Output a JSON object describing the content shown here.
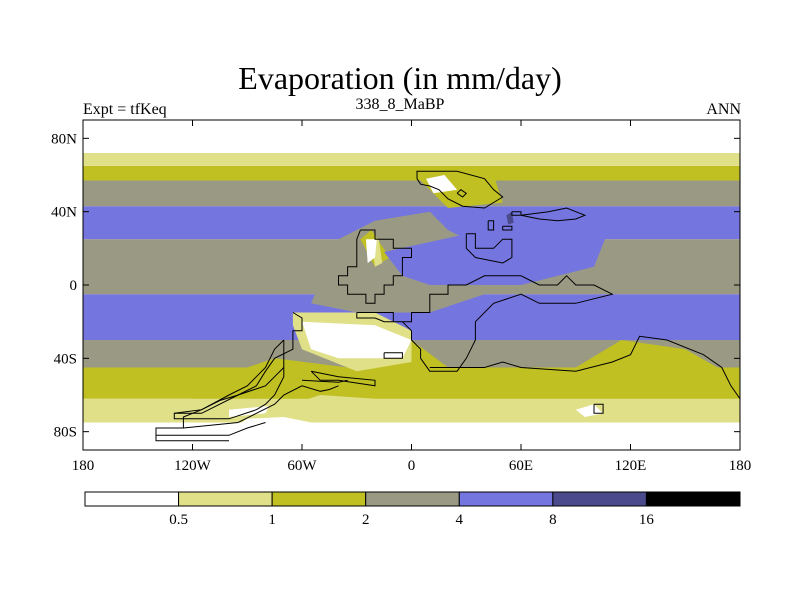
{
  "title": "Evaporation (in mm/day)",
  "left_label": "Expt = tfKeq",
  "center_label": "338_8_MaBP",
  "right_label": "ANN",
  "colors": {
    "c0": "#ffffff",
    "c1": "#e0e089",
    "c2": "#c0c023",
    "c3": "#9a9a84",
    "c4": "#7575e0",
    "c5": "#4a4a8c",
    "c6": "#000000"
  },
  "chart_data": {
    "type": "heatmap",
    "title": "Evaporation (in mm/day)",
    "subtitle": "338_8_MaBP",
    "annotations": [
      "Expt = tfKeq",
      "ANN"
    ],
    "xlim": [
      -180,
      180
    ],
    "ylim": [
      -90,
      90
    ],
    "x_ticks": [
      {
        "value": -180,
        "label": "180"
      },
      {
        "value": -120,
        "label": "120W"
      },
      {
        "value": -60,
        "label": "60W"
      },
      {
        "value": 0,
        "label": "0"
      },
      {
        "value": 60,
        "label": "60E"
      },
      {
        "value": 120,
        "label": "120E"
      },
      {
        "value": 180,
        "label": "180"
      }
    ],
    "y_ticks": [
      {
        "value": 80,
        "label": "80N"
      },
      {
        "value": 40,
        "label": "40N"
      },
      {
        "value": 0,
        "label": "0"
      },
      {
        "value": -40,
        "label": "40S"
      },
      {
        "value": -80,
        "label": "80S"
      }
    ],
    "colorbar": {
      "levels": [
        0.5,
        1,
        2,
        4,
        8,
        16
      ],
      "labels": [
        "0.5",
        "1",
        "2",
        "4",
        "8",
        "16"
      ],
      "colors": [
        "#ffffff",
        "#e0e089",
        "#c0c023",
        "#9a9a84",
        "#7575e0",
        "#4a4a8c",
        "#000000"
      ]
    },
    "zonal_bands": [
      {
        "lat": [
          -90,
          -75
        ],
        "level": 0
      },
      {
        "lat": [
          -75,
          -62
        ],
        "level": 1
      },
      {
        "lat": [
          -62,
          -45
        ],
        "level": 2
      },
      {
        "lat": [
          -45,
          -30
        ],
        "level": 3
      },
      {
        "lat": [
          -30,
          -5
        ],
        "level": 4
      },
      {
        "lat": [
          -5,
          25
        ],
        "level": 3
      },
      {
        "lat": [
          25,
          43
        ],
        "level": 4
      },
      {
        "lat": [
          43,
          57
        ],
        "level": 3
      },
      {
        "lat": [
          57,
          65
        ],
        "level": 2
      },
      {
        "lat": [
          65,
          72
        ],
        "level": 1
      },
      {
        "lat": [
          72,
          90
        ],
        "level": 0
      }
    ],
    "regions": [
      {
        "level": 2,
        "polygon": [
          [
            -120,
            -55
          ],
          [
            -75,
            -40
          ],
          [
            -35,
            -45
          ],
          [
            0,
            -30
          ],
          [
            20,
            -45
          ],
          [
            60,
            -50
          ],
          [
            90,
            -45
          ],
          [
            115,
            -30
          ],
          [
            150,
            -35
          ],
          [
            180,
            -52
          ],
          [
            180,
            -62
          ],
          [
            -120,
            -62
          ]
        ]
      },
      {
        "level": 3,
        "polygon": [
          [
            -55,
            -10
          ],
          [
            -40,
            25
          ],
          [
            -20,
            35
          ],
          [
            10,
            40
          ],
          [
            20,
            30
          ],
          [
            40,
            20
          ],
          [
            55,
            10
          ],
          [
            40,
            -5
          ],
          [
            10,
            -15
          ],
          [
            -30,
            -15
          ]
        ]
      },
      {
        "level": 2,
        "polygon": [
          [
            -28,
            25
          ],
          [
            -22,
            30
          ],
          [
            -12,
            15
          ],
          [
            -20,
            10
          ]
        ]
      },
      {
        "level": 2,
        "polygon": [
          [
            2,
            60
          ],
          [
            10,
            62
          ],
          [
            45,
            60
          ],
          [
            50,
            45
          ],
          [
            20,
            42
          ]
        ]
      },
      {
        "level": 0,
        "polygon": [
          [
            8,
            58
          ],
          [
            18,
            60
          ],
          [
            25,
            52
          ],
          [
            12,
            50
          ]
        ]
      },
      {
        "level": 1,
        "polygon": [
          [
            -22,
            25
          ],
          [
            -18,
            25
          ],
          [
            -16,
            12
          ],
          [
            -20,
            10
          ]
        ]
      },
      {
        "level": 0,
        "polygon": [
          [
            -25,
            25
          ],
          [
            -19,
            25
          ],
          [
            -20,
            15
          ],
          [
            -24,
            12
          ]
        ]
      },
      {
        "level": 1,
        "polygon": [
          [
            -65,
            -15
          ],
          [
            -20,
            -15
          ],
          [
            0,
            -25
          ],
          [
            0,
            -42
          ],
          [
            -30,
            -47
          ],
          [
            -60,
            -35
          ],
          [
            -65,
            -22
          ]
        ]
      },
      {
        "level": 0,
        "polygon": [
          [
            -60,
            -20
          ],
          [
            -20,
            -22
          ],
          [
            0,
            -30
          ],
          [
            -5,
            -40
          ],
          [
            -40,
            -40
          ],
          [
            -55,
            -35
          ]
        ]
      },
      {
        "level": 1,
        "polygon": [
          [
            30,
            20
          ],
          [
            50,
            25
          ],
          [
            55,
            18
          ],
          [
            35,
            15
          ]
        ]
      },
      {
        "level": 0,
        "polygon": [
          [
            33,
            22
          ],
          [
            45,
            24
          ],
          [
            46,
            18
          ],
          [
            38,
            17
          ]
        ]
      },
      {
        "level": 4,
        "polygon": [
          [
            -15,
            18
          ],
          [
            40,
            30
          ],
          [
            70,
            38
          ],
          [
            90,
            40
          ],
          [
            110,
            35
          ],
          [
            100,
            10
          ],
          [
            60,
            0
          ],
          [
            10,
            0
          ],
          [
            -5,
            5
          ]
        ]
      },
      {
        "level": 5,
        "polygon": [
          [
            52,
            38
          ],
          [
            55,
            40
          ],
          [
            56,
            34
          ],
          [
            53,
            33
          ]
        ]
      },
      {
        "level": 3,
        "polygon": [
          [
            -30,
            -2
          ],
          [
            -10,
            5
          ],
          [
            0,
            -12
          ],
          [
            -20,
            -15
          ]
        ]
      },
      {
        "level": 1,
        "polygon": [
          [
            -75,
            -68
          ],
          [
            -50,
            -60
          ],
          [
            -20,
            -62
          ],
          [
            -20,
            -68
          ],
          [
            -60,
            -72
          ]
        ]
      },
      {
        "level": 0,
        "polygon": [
          [
            -100,
            -80
          ],
          [
            -90,
            -73
          ],
          [
            -70,
            -72
          ],
          [
            -40,
            -78
          ],
          [
            -40,
            -85
          ],
          [
            -100,
            -85
          ]
        ]
      },
      {
        "level": 0,
        "polygon": [
          [
            -100,
            -72
          ],
          [
            -80,
            -70
          ],
          [
            -78,
            -66
          ],
          [
            -100,
            -68
          ]
        ]
      },
      {
        "level": 0,
        "polygon": [
          [
            90,
            -68
          ],
          [
            100,
            -65
          ],
          [
            105,
            -70
          ],
          [
            95,
            -72
          ]
        ]
      }
    ],
    "coastlines": [
      [
        [
          -28,
          30
        ],
        [
          -20,
          30
        ],
        [
          -20,
          25
        ],
        [
          -10,
          25
        ],
        [
          -10,
          20
        ],
        [
          0,
          20
        ],
        [
          0,
          15
        ],
        [
          -5,
          15
        ],
        [
          -5,
          5
        ],
        [
          -10,
          5
        ],
        [
          -10,
          0
        ],
        [
          -15,
          0
        ],
        [
          -15,
          -5
        ],
        [
          -20,
          -5
        ],
        [
          -20,
          -10
        ],
        [
          -25,
          -10
        ],
        [
          -25,
          -5
        ],
        [
          -35,
          -5
        ],
        [
          -35,
          0
        ],
        [
          -40,
          0
        ],
        [
          -40,
          5
        ],
        [
          -35,
          5
        ],
        [
          -35,
          10
        ],
        [
          -30,
          10
        ],
        [
          -30,
          25
        ],
        [
          -28,
          30
        ]
      ],
      [
        [
          -30,
          -15
        ],
        [
          -10,
          -15
        ],
        [
          -10,
          -20
        ],
        [
          0,
          -20
        ],
        [
          0,
          -15
        ],
        [
          10,
          -15
        ],
        [
          10,
          -5
        ],
        [
          20,
          -5
        ],
        [
          20,
          0
        ],
        [
          30,
          0
        ],
        [
          40,
          5
        ],
        [
          60,
          5
        ],
        [
          70,
          0
        ],
        [
          80,
          0
        ],
        [
          85,
          5
        ],
        [
          90,
          0
        ],
        [
          100,
          0
        ],
        [
          110,
          -5
        ],
        [
          90,
          -10
        ],
        [
          70,
          -10
        ],
        [
          60,
          -5
        ],
        [
          45,
          -10
        ],
        [
          35,
          -20
        ],
        [
          35,
          -30
        ],
        [
          30,
          -40
        ],
        [
          25,
          -47
        ],
        [
          10,
          -47
        ],
        [
          5,
          -40
        ],
        [
          5,
          -35
        ],
        [
          0,
          -30
        ],
        [
          0,
          -25
        ],
        [
          -5,
          -20
        ],
        [
          -15,
          -20
        ],
        [
          -20,
          -18
        ],
        [
          -30,
          -18
        ],
        [
          -30,
          -15
        ]
      ],
      [
        [
          -65,
          -15
        ],
        [
          -60,
          -18
        ],
        [
          -60,
          -25
        ],
        [
          -65,
          -25
        ],
        [
          -65,
          -35
        ],
        [
          -75,
          -40
        ],
        [
          -80,
          -47
        ],
        [
          -85,
          -55
        ],
        [
          -95,
          -60
        ],
        [
          -115,
          -70
        ],
        [
          -130,
          -70
        ],
        [
          -130,
          -73
        ],
        [
          -100,
          -73
        ],
        [
          -85,
          -68
        ],
        [
          -80,
          -65
        ],
        [
          -75,
          -60
        ],
        [
          -70,
          -50
        ],
        [
          -70,
          -40
        ],
        [
          -70,
          -30
        ]
      ],
      [
        [
          -55,
          -47
        ],
        [
          -50,
          -52
        ],
        [
          -40,
          -52
        ],
        [
          -20,
          -55
        ],
        [
          -20,
          -52
        ],
        [
          -40,
          -50
        ],
        [
          -55,
          -47
        ]
      ],
      [
        [
          3,
          58
        ],
        [
          3,
          62
        ],
        [
          15,
          62
        ],
        [
          25,
          62
        ],
        [
          40,
          58
        ],
        [
          45,
          52
        ],
        [
          50,
          48
        ],
        [
          45,
          45
        ],
        [
          40,
          42
        ],
        [
          28,
          43
        ],
        [
          20,
          47
        ],
        [
          15,
          52
        ],
        [
          10,
          54
        ],
        [
          5,
          55
        ],
        [
          3,
          58
        ]
      ],
      [
        [
          25,
          50
        ],
        [
          28,
          48
        ],
        [
          30,
          50
        ],
        [
          27,
          52
        ],
        [
          25,
          50
        ]
      ],
      [
        [
          42,
          35
        ],
        [
          45,
          35
        ],
        [
          45,
          30
        ],
        [
          42,
          30
        ],
        [
          42,
          35
        ]
      ],
      [
        [
          50,
          32
        ],
        [
          55,
          32
        ],
        [
          55,
          30
        ],
        [
          50,
          30
        ],
        [
          50,
          32
        ]
      ],
      [
        [
          30,
          28
        ],
        [
          35,
          28
        ],
        [
          35,
          20
        ],
        [
          45,
          20
        ],
        [
          50,
          25
        ],
        [
          55,
          25
        ],
        [
          55,
          15
        ],
        [
          50,
          12
        ],
        [
          35,
          15
        ],
        [
          30,
          20
        ],
        [
          30,
          28
        ]
      ],
      [
        [
          55,
          40
        ],
        [
          60,
          40
        ],
        [
          60,
          38
        ],
        [
          55,
          38
        ],
        [
          55,
          40
        ]
      ],
      [
        [
          60,
          38
        ],
        [
          75,
          40
        ],
        [
          85,
          42
        ],
        [
          90,
          40
        ],
        [
          95,
          38
        ],
        [
          90,
          36
        ],
        [
          80,
          35
        ],
        [
          70,
          36
        ],
        [
          60,
          38
        ]
      ],
      [
        [
          -70,
          -30
        ],
        [
          -75,
          -35
        ],
        [
          -80,
          -45
        ],
        [
          -85,
          -50
        ],
        [
          -90,
          -55
        ],
        [
          -100,
          -60
        ],
        [
          -115,
          -68
        ],
        [
          -125,
          -72
        ],
        [
          -125,
          -78
        ],
        [
          -140,
          -78
        ],
        [
          -140,
          -82
        ],
        [
          -100,
          -82
        ],
        [
          -90,
          -78
        ],
        [
          -80,
          -75
        ]
      ],
      [
        [
          -125,
          -78
        ],
        [
          -95,
          -75
        ],
        [
          -85,
          -70
        ],
        [
          -75,
          -65
        ],
        [
          -70,
          -60
        ],
        [
          -60,
          -55
        ],
        [
          -50,
          -58
        ],
        [
          -45,
          -57
        ],
        [
          -40,
          -55
        ]
      ],
      [
        [
          -100,
          -85
        ],
        [
          -140,
          -85
        ],
        [
          -140,
          -82
        ]
      ],
      [
        [
          -130,
          -70
        ],
        [
          -115,
          -68
        ],
        [
          -105,
          -63
        ],
        [
          -95,
          -60
        ],
        [
          -80,
          -55
        ],
        [
          -75,
          -50
        ],
        [
          -70,
          -45
        ]
      ],
      [
        [
          -60,
          -52
        ],
        [
          -40,
          -53
        ],
        [
          -35,
          -52
        ]
      ],
      [
        [
          10,
          -45
        ],
        [
          40,
          -45
        ],
        [
          50,
          -42
        ],
        [
          60,
          -45
        ],
        [
          90,
          -47
        ],
        [
          110,
          -42
        ],
        [
          120,
          -38
        ],
        [
          125,
          -28
        ],
        [
          140,
          -30
        ],
        [
          160,
          -38
        ],
        [
          170,
          -45
        ],
        [
          175,
          -55
        ],
        [
          180,
          -62
        ]
      ],
      [
        [
          -15,
          -37
        ],
        [
          -5,
          -37
        ],
        [
          -5,
          -40
        ],
        [
          -15,
          -40
        ],
        [
          -15,
          -37
        ]
      ],
      [
        [
          100,
          -65
        ],
        [
          105,
          -65
        ],
        [
          105,
          -70
        ],
        [
          100,
          -70
        ],
        [
          100,
          -65
        ]
      ]
    ]
  }
}
